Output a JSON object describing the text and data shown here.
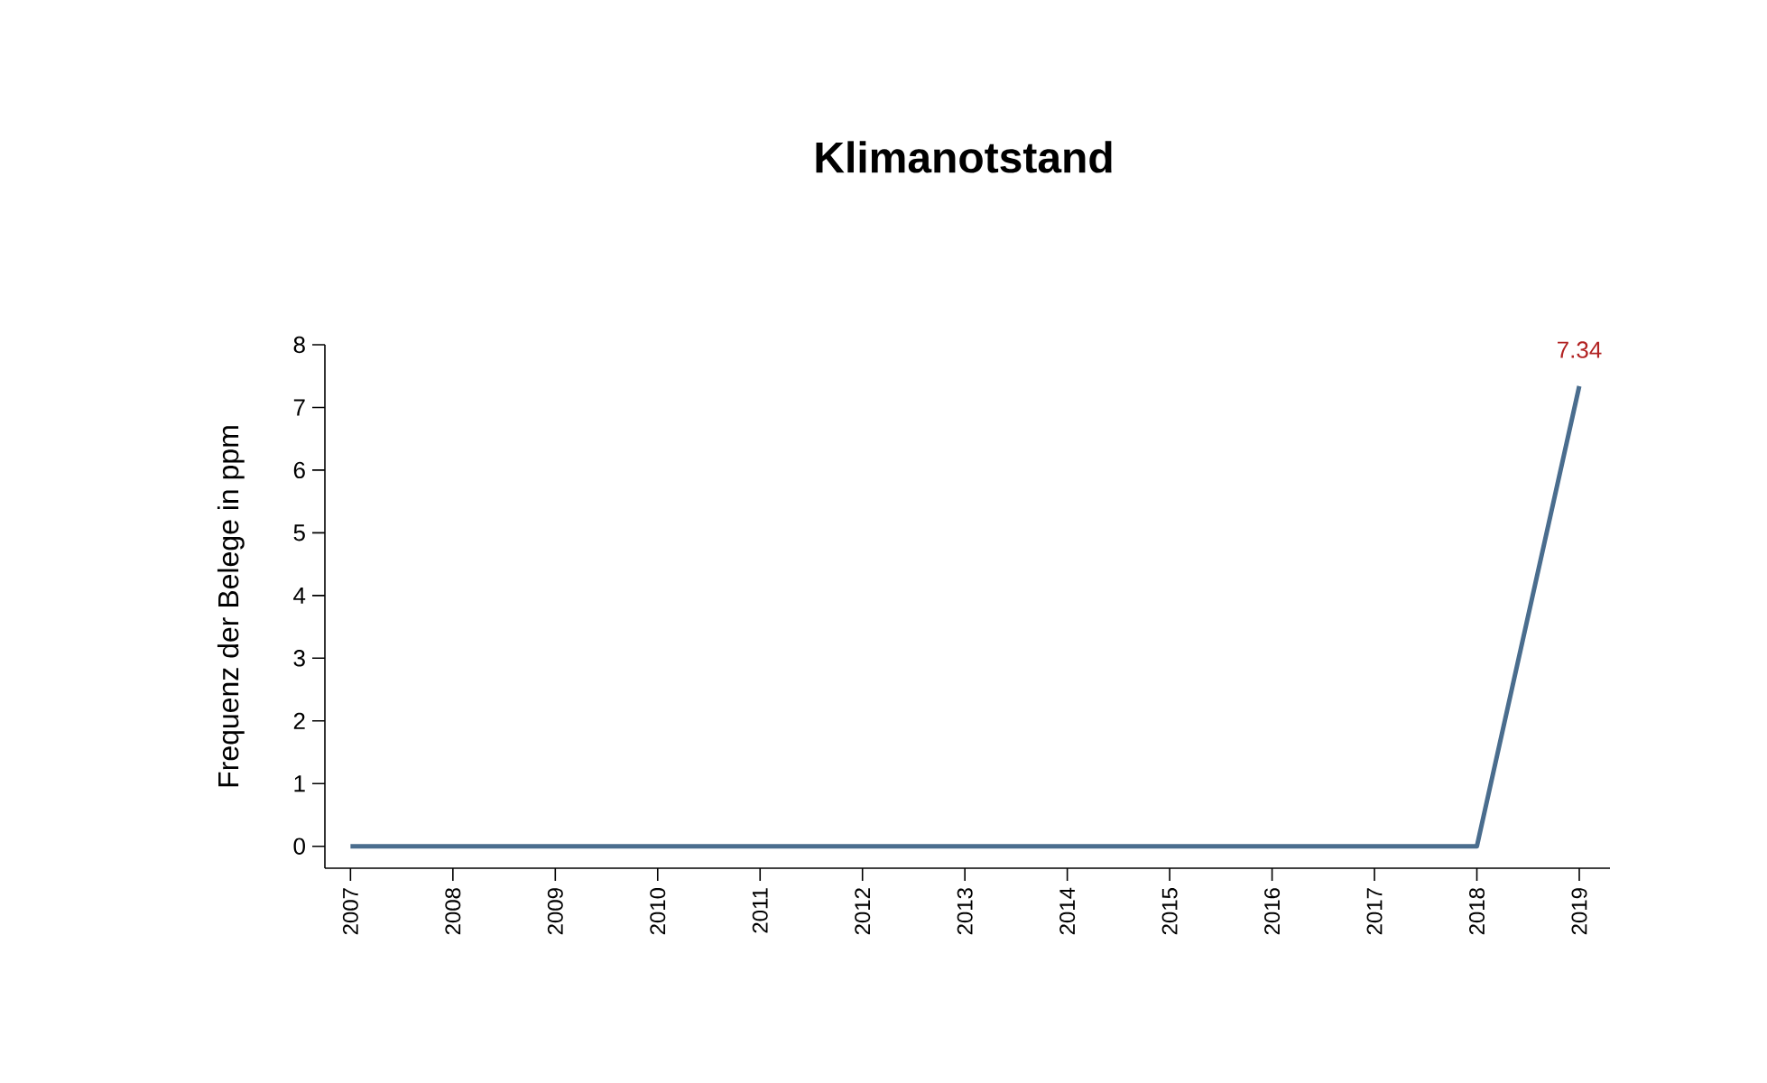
{
  "chart_data": {
    "type": "line",
    "title": "Klimanotstand",
    "ylabel": "Frequenz der Belege in ppm",
    "x": [
      2007,
      2008,
      2009,
      2010,
      2011,
      2012,
      2013,
      2014,
      2015,
      2016,
      2017,
      2018,
      2019
    ],
    "values": [
      0,
      0,
      0,
      0,
      0,
      0,
      0,
      0,
      0,
      0,
      0,
      0,
      7.34
    ],
    "value_labels": [
      null,
      null,
      null,
      null,
      null,
      null,
      null,
      null,
      null,
      null,
      null,
      null,
      "7.34"
    ],
    "color": "#4a6d8e",
    "xlim": [
      2006.75,
      2019.3
    ],
    "ylim": [
      -0.35,
      8
    ],
    "xticks": [
      2007,
      2008,
      2009,
      2010,
      2011,
      2012,
      2013,
      2014,
      2015,
      2016,
      2017,
      2018,
      2019
    ],
    "yticks": [
      0,
      1,
      2,
      3,
      4,
      5,
      6,
      7,
      8
    ]
  }
}
